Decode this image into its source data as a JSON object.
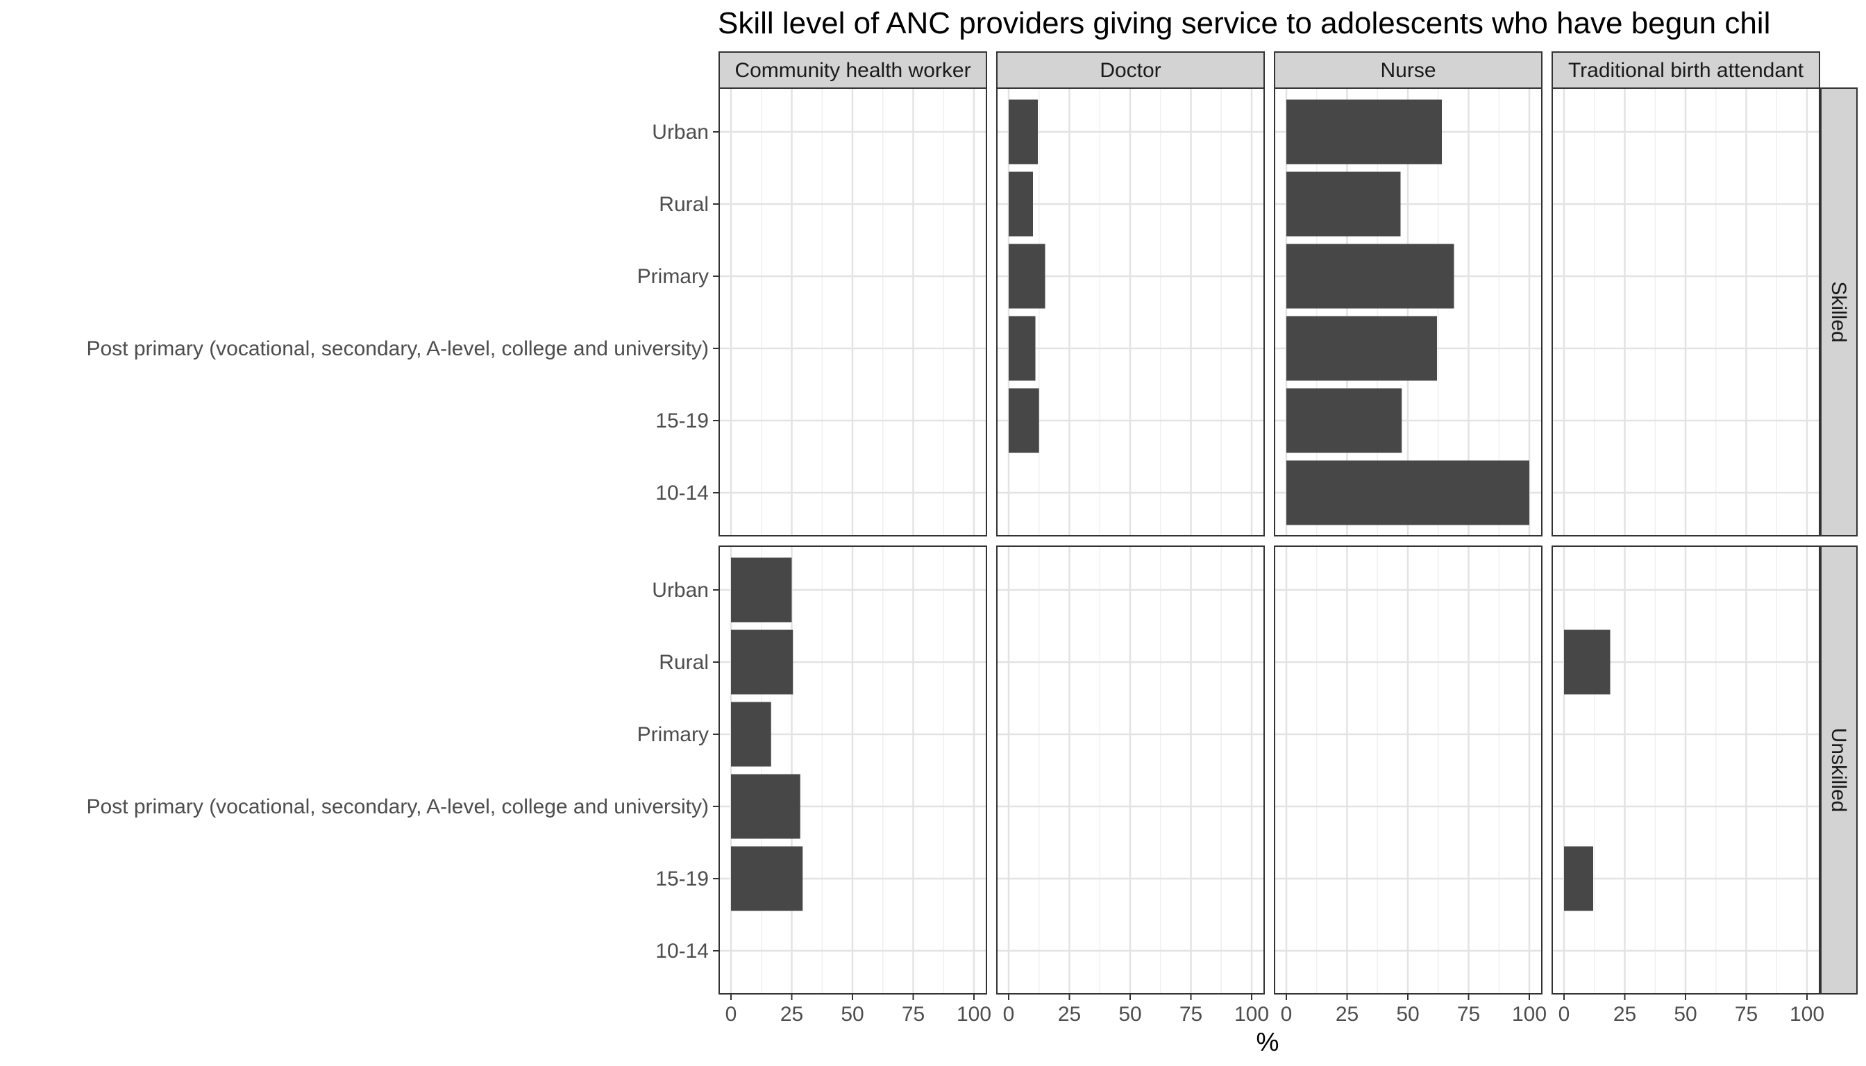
{
  "chart_data": {
    "type": "bar",
    "orientation": "horizontal",
    "title": "Skill level of ANC providers giving service to adolescents who have begun chil",
    "xlabel": "%",
    "ylabel": "",
    "xlim": [
      0,
      100
    ],
    "xticks": [
      0,
      25,
      50,
      75,
      100
    ],
    "grid": true,
    "legend": "none",
    "bar_color": "#474747",
    "facet_columns": [
      "Community health worker",
      "Doctor",
      "Nurse",
      "Traditional birth attendant"
    ],
    "facet_rows": [
      "Skilled",
      "Unskilled"
    ],
    "categories": [
      "Urban",
      "Rural",
      "Primary",
      "Post primary (vocational, secondary, A-level, college and university)",
      "15-19",
      "10-14"
    ],
    "series": [
      {
        "row": "Skilled",
        "column": "Community health worker",
        "values": [
          null,
          null,
          null,
          null,
          null,
          null
        ]
      },
      {
        "row": "Skilled",
        "column": "Doctor",
        "values": [
          12,
          10,
          15,
          11,
          12.5,
          null
        ]
      },
      {
        "row": "Skilled",
        "column": "Nurse",
        "values": [
          64,
          47,
          69,
          62,
          47.5,
          100
        ]
      },
      {
        "row": "Skilled",
        "column": "Traditional birth attendant",
        "values": [
          null,
          null,
          null,
          null,
          null,
          null
        ]
      },
      {
        "row": "Unskilled",
        "column": "Community health worker",
        "values": [
          25,
          25.5,
          16.5,
          28.5,
          29.5,
          null
        ]
      },
      {
        "row": "Unskilled",
        "column": "Doctor",
        "values": [
          null,
          null,
          null,
          null,
          null,
          null
        ]
      },
      {
        "row": "Unskilled",
        "column": "Nurse",
        "values": [
          null,
          null,
          null,
          null,
          null,
          null
        ]
      },
      {
        "row": "Unskilled",
        "column": "Traditional birth attendant",
        "values": [
          null,
          19,
          null,
          null,
          12,
          null
        ]
      }
    ]
  }
}
